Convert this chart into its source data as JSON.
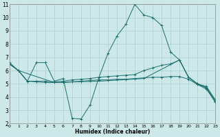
{
  "xlabel": "Humidex (Indice chaleur)",
  "bg_color": "#cce8e8",
  "grid_color": "#aacece",
  "line_color": "#1a6e6e",
  "xlim": [
    0,
    23
  ],
  "ylim": [
    2,
    11
  ],
  "xticks": [
    0,
    1,
    2,
    3,
    4,
    5,
    6,
    7,
    8,
    9,
    10,
    11,
    12,
    13,
    14,
    15,
    16,
    17,
    18,
    19,
    20,
    21,
    22,
    23
  ],
  "yticks": [
    2,
    3,
    4,
    5,
    6,
    7,
    8,
    9,
    10,
    11
  ],
  "series": [
    {
      "x": [
        0,
        1,
        2,
        3,
        4,
        5,
        6,
        7,
        8,
        9,
        10,
        11,
        12,
        13,
        14,
        15,
        16,
        17,
        18,
        19,
        20,
        21,
        22,
        23
      ],
      "y": [
        6.6,
        6.0,
        5.2,
        6.6,
        6.6,
        5.2,
        5.4,
        2.4,
        2.35,
        3.4,
        5.5,
        7.3,
        8.6,
        9.5,
        11.0,
        10.2,
        10.0,
        9.4,
        7.4,
        6.8,
        5.5,
        5.0,
        4.7,
        3.7
      ],
      "has_marker": true
    },
    {
      "x": [
        0,
        1,
        2,
        3,
        4,
        5,
        6,
        7,
        8,
        9,
        10,
        11,
        12,
        13,
        14,
        15,
        16,
        17,
        18,
        19,
        20,
        21,
        22,
        23
      ],
      "y": [
        6.5,
        6.0,
        5.2,
        5.2,
        5.2,
        5.15,
        5.2,
        5.3,
        5.35,
        5.4,
        5.5,
        5.55,
        5.6,
        5.65,
        5.7,
        6.0,
        6.2,
        6.4,
        6.5,
        6.8,
        5.5,
        5.0,
        4.8,
        3.8
      ],
      "has_marker": true
    },
    {
      "x": [
        0,
        1,
        2,
        3,
        4,
        5,
        6,
        7,
        8,
        9,
        10,
        11,
        12,
        13,
        14,
        15,
        16,
        17,
        18,
        19,
        20,
        21,
        22,
        23
      ],
      "y": [
        6.5,
        6.0,
        5.2,
        5.15,
        5.1,
        5.1,
        5.1,
        5.15,
        5.2,
        5.25,
        5.3,
        5.3,
        5.35,
        5.35,
        5.4,
        5.45,
        5.5,
        5.5,
        5.55,
        5.55,
        5.35,
        4.95,
        4.6,
        3.65
      ],
      "has_marker": true
    },
    {
      "x": [
        0,
        1,
        5,
        10,
        15,
        19,
        20,
        21,
        22,
        23
      ],
      "y": [
        6.5,
        6.0,
        5.1,
        5.2,
        5.4,
        6.8,
        5.5,
        5.0,
        4.7,
        3.6
      ],
      "has_marker": false
    }
  ]
}
